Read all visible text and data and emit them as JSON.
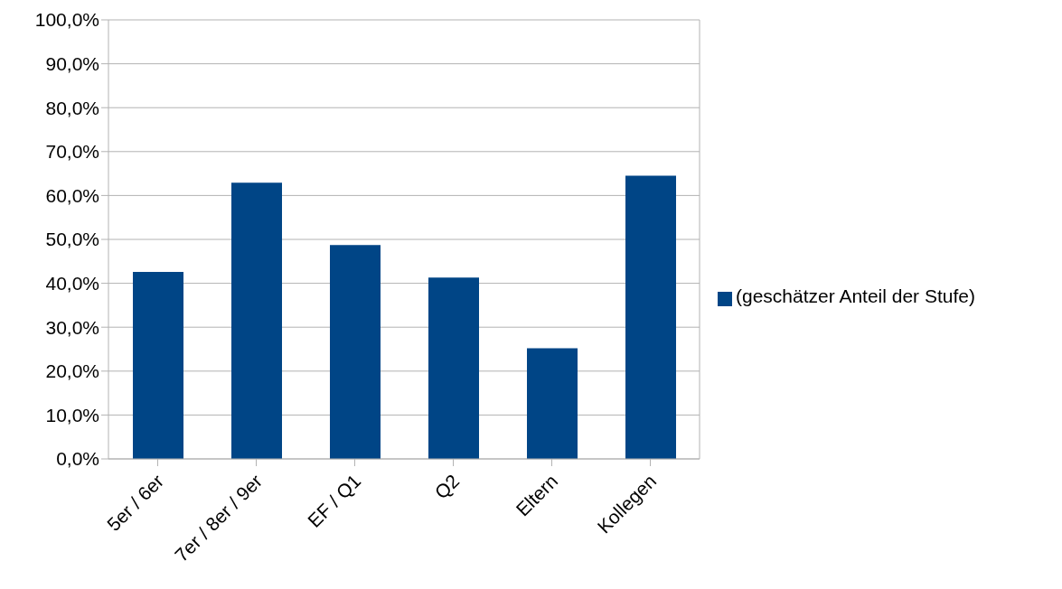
{
  "chart_data": {
    "type": "bar",
    "categories": [
      "5er / 6er",
      "7er / 8er / 9er",
      "EF / Q1",
      "Q2",
      "Eltern",
      "Kollegen"
    ],
    "series": [
      {
        "name": "(geschätzer Anteil der Stufe)",
        "color": "#004586",
        "values": [
          42.6,
          62.9,
          48.7,
          41.3,
          25.2,
          64.5
        ]
      }
    ],
    "ylim": [
      0,
      100
    ],
    "yticks": [
      {
        "value": 0,
        "label": "0,0%"
      },
      {
        "value": 10,
        "label": "10,0%"
      },
      {
        "value": 20,
        "label": "20,0%"
      },
      {
        "value": 30,
        "label": "30,0%"
      },
      {
        "value": 40,
        "label": "40,0%"
      },
      {
        "value": 50,
        "label": "50,0%"
      },
      {
        "value": 60,
        "label": "60,0%"
      },
      {
        "value": 70,
        "label": "70,0%"
      },
      {
        "value": 80,
        "label": "80,0%"
      },
      {
        "value": 90,
        "label": "90,0%"
      },
      {
        "value": 100,
        "label": "100,0%"
      }
    ],
    "grid": "y",
    "legend": "right"
  }
}
